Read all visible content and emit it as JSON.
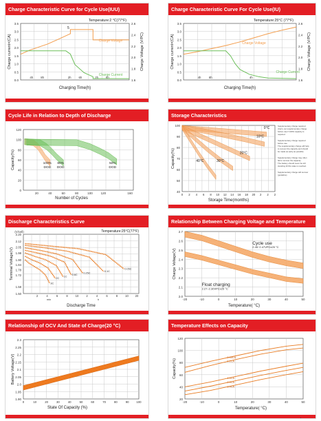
{
  "panels": [
    {
      "title": "Charge Characteristic Curve for Cycle Use(IUU)",
      "chart_data": {
        "type": "line",
        "annotation": "Temperature:2    °C(77°F)",
        "marker": "5",
        "xlabel": "Charging Time(h)",
        "ylabel_left": "Charge current×(CA)",
        "ylabel_right": "Charge Voltage (V/PC)",
        "x_ticks": [
          "4h",
          "8h",
          "2h",
          "6h",
          "2h",
          "6h"
        ],
        "y_left_ticks": [
          "0.0",
          "0.5",
          "1.0",
          "1.5",
          "2.0",
          "2.5",
          "3.0",
          "3.5"
        ],
        "y_right_ticks": [
          "1.6",
          "1.8",
          "2.0",
          "2.2",
          "2.4",
          "2.6"
        ],
        "xlim": [
          0,
          24
        ],
        "ylim_left": [
          0,
          3.5
        ],
        "ylim_right": [
          1.5,
          2.6
        ],
        "series": [
          {
            "name": "Charge Voltage",
            "color": "#f39c4a",
            "x": [
              0,
              2,
              4,
              6,
              8,
              10,
              11,
              11,
              16,
              16,
              21,
              24
            ],
            "y": [
              2.0,
              2.08,
              2.14,
              2.2,
              2.28,
              2.36,
              2.4,
              2.48,
              2.48,
              2.28,
              2.28,
              2.28
            ]
          },
          {
            "name": "Charge Current",
            "color": "#6cbf5a",
            "x": [
              0,
              8,
              10,
              11,
              12,
              14,
              16,
              16,
              24
            ],
            "y": [
              1.8,
              1.8,
              1.8,
              1.6,
              0.95,
              0.45,
              0.2,
              0.08,
              0.08
            ]
          }
        ]
      }
    },
    {
      "title": "Charge Characteristic Curve For Cycle Use(IU)",
      "chart_data": {
        "type": "line",
        "annotation": "Temperature:25°C (77°F)",
        "xlabel": "Charging Time(h)",
        "ylabel_left": "Charge current×(CA)",
        "ylabel_right": "Charge Voltage (V/PC)",
        "x_ticks": [
          "4h",
          "8h",
          "4h"
        ],
        "y_left_ticks": [
          "0.0",
          "0.5",
          "1.0",
          "1.5",
          "2.0",
          "2.5",
          "3.0",
          "3.5"
        ],
        "y_right_ticks": [
          "1.6",
          "1.8",
          "2.0",
          "2.2",
          "2.4",
          "2.6"
        ],
        "xlim": [
          0,
          24
        ],
        "ylim_left": [
          0,
          3.5
        ],
        "ylim_right": [
          1.5,
          2.6
        ],
        "series": [
          {
            "name": "Charge Voltage",
            "color": "#f39c4a",
            "x": [
              0,
              3,
              6,
              9,
              12,
              15,
              18,
              21,
              24
            ],
            "y": [
              2.0,
              2.05,
              2.11,
              2.17,
              2.24,
              2.32,
              2.4,
              2.47,
              2.53
            ]
          },
          {
            "name": "Charge Current",
            "color": "#6cbf5a",
            "x": [
              0,
              9,
              10,
              11,
              12,
              14,
              16,
              18,
              24
            ],
            "y": [
              1.8,
              1.8,
              1.5,
              1.0,
              0.65,
              0.35,
              0.2,
              0.12,
              0.08
            ]
          }
        ]
      }
    },
    {
      "title": "Cycle Life in Relation to Depth of Discharge",
      "chart_data": {
        "type": "area",
        "xlabel": "Number of Cycles",
        "ylabel": "Capacity(%)",
        "x_ticks": [
          "20",
          "40",
          "60",
          "80",
          "100",
          "120",
          "160"
        ],
        "x_tick_values": [
          20,
          40,
          60,
          80,
          100,
          120,
          160
        ],
        "y_ticks": [
          "0",
          "20",
          "40",
          "60",
          "80",
          "100",
          "120"
        ],
        "xlim": [
          0,
          165
        ],
        "ylim": [
          0,
          120
        ],
        "series": [
          {
            "name": "100% DOD",
            "color": "#f4a460",
            "x": [
              2,
              15,
              22,
              28,
              33,
              40
            ],
            "y": [
              102,
              100,
              92,
              80,
              70,
              60
            ]
          },
          {
            "name": "80% DOD",
            "color": "#6cbf5a",
            "x": [
              2,
              25,
              35,
              43,
              50,
              55,
              60
            ],
            "y": [
              102,
              100,
              92,
              82,
              72,
              66,
              60
            ]
          },
          {
            "name": "50% DOD",
            "color": "#6cbf5a",
            "x": [
              5,
              80,
              100,
              115,
              128,
              135,
              140
            ],
            "y": [
              101,
              100,
              92,
              83,
              74,
              67,
              62
            ]
          }
        ],
        "labels": [
          "100%\nDOD",
          "80%\nDOD",
          "50%\nDOD"
        ]
      }
    },
    {
      "title": "Storage Characteristics",
      "chart_data": {
        "type": "line",
        "xlabel": "Storage Time(months)",
        "ylabel": "Capacity(%)",
        "x_ticks": [
          "0",
          "2",
          "4",
          "6",
          "8",
          "10",
          "12",
          "14",
          "16",
          "18",
          "20",
          "2",
          "2",
          "2"
        ],
        "y_ticks": [
          "40",
          "50",
          "60",
          "70",
          "80",
          "90",
          "100"
        ],
        "xlim": [
          0,
          22
        ],
        "ylim": [
          40,
          100
        ],
        "series": [
          {
            "name": "0°C",
            "x": [
              0,
              5,
              10,
              15,
              20
            ],
            "y": [
              100,
              98.5,
              97,
              95.5,
              94
            ]
          },
          {
            "name": "10°C",
            "x": [
              0,
              5,
              10,
              15,
              19.5
            ],
            "y": [
              100,
              97,
              93,
              89,
              85
            ]
          },
          {
            "name": "20°C",
            "x": [
              0,
              4,
              8,
              12,
              16
            ],
            "y": [
              100,
              93,
              86,
              79,
              72
            ]
          },
          {
            "name": "30°C",
            "x": [
              0,
              3,
              6,
              9,
              12
            ],
            "y": [
              100,
              90,
              80,
              71,
              63
            ]
          },
          {
            "name": "40°C",
            "x": [
              0,
              2,
              4,
              6,
              8
            ],
            "y": [
              100,
              88,
              76,
              65,
              55
            ]
          }
        ],
        "notes": [
          "Supplementary charge required",
          "(Carry out supplementary charge",
          "before use if 100% capacity is",
          "required.",
          "Supplementary charge required",
          "before use.",
          "The supplementary charge will help",
          "to recover the capacity and should",
          "be made as early as possible.",
          "Supplementary charge may often",
          "fail to recover the capacity.",
          "The battery should never be left",
          "standing till this state is reached.",
          "Supplementary charge will recover",
          "(guideline)"
        ]
      }
    },
    {
      "title": "Discharge Characteristics Curve",
      "chart_data": {
        "type": "line",
        "annotation": "Temperature:25°C(77°F)",
        "xlabel": "Discharge Time",
        "ylabel": "Terminal Voltage(V)",
        "y_unit": "(V/cell)",
        "y_ticks": [
          "2.20",
          "2.12",
          "2.05",
          "1.98",
          "1.90",
          "1.84",
          "1.78",
          "1.72",
          "1.58",
          "1.50"
        ],
        "y_tick_values": [
          2.2,
          2.12,
          2.05,
          1.98,
          1.9,
          1.84,
          1.78,
          1.72,
          1.58,
          1.5
        ],
        "x_ticks": [
          "2",
          "4",
          "6",
          "8",
          "10",
          "2",
          "4",
          "6",
          "8",
          "10",
          "20"
        ],
        "x_unit_labels": [
          "min",
          "h"
        ],
        "xlim": [
          0,
          21
        ],
        "ylim": [
          1.5,
          2.2
        ],
        "series": [
          {
            "name": "3C",
            "x": [
              0.3,
              1,
              2,
              3,
              4,
              4.8
            ],
            "y": [
              1.9,
              1.86,
              1.82,
              1.78,
              1.72,
              1.62
            ]
          },
          {
            "name": "2C",
            "x": [
              0.3,
              1.5,
              3,
              4.5,
              5.8
            ],
            "y": [
              1.94,
              1.9,
              1.86,
              1.8,
              1.68
            ]
          },
          {
            "name": "1C",
            "x": [
              0.3,
              2,
              4,
              6,
              7.2
            ],
            "y": [
              1.98,
              1.94,
              1.9,
              1.83,
              1.7
            ]
          },
          {
            "name": "0.6C",
            "x": [
              0.3,
              2.5,
              5,
              7.5,
              8.7
            ],
            "y": [
              2.01,
              1.98,
              1.94,
              1.87,
              1.72
            ]
          },
          {
            "name": "0.25C",
            "x": [
              0.3,
              3,
              6,
              9,
              10.8
            ],
            "y": [
              2.04,
              2.01,
              1.97,
              1.9,
              1.74
            ]
          },
          {
            "name": "0.1C",
            "x": [
              0.3,
              4,
              8,
              12,
              14.6
            ],
            "y": [
              2.07,
              2.04,
              2.0,
              1.93,
              1.76
            ]
          },
          {
            "name": "0.05C",
            "x": [
              0.3,
              5,
              10,
              15,
              18.3
            ],
            "y": [
              2.09,
              2.06,
              2.03,
              1.96,
              1.79
            ]
          }
        ]
      }
    },
    {
      "title": "Relationship Between Charging Voltage and Temperature",
      "chart_data": {
        "type": "area",
        "xlabel": "Temperature(  °C)",
        "ylabel": "Charge Voltage(V)",
        "x_ticks": [
          "-20",
          "-10",
          "0",
          "10",
          "20",
          "30",
          "40",
          "50"
        ],
        "x_tick_values": [
          -20,
          -10,
          0,
          10,
          20,
          30,
          40,
          50
        ],
        "y_ticks": [
          "2.0",
          "2.1",
          "2.2",
          "2.3",
          "2.4",
          "2.5",
          "2.6",
          "2.7"
        ],
        "xlim": [
          -20,
          50
        ],
        "ylim": [
          2.0,
          2.7
        ],
        "series": [
          {
            "name": "Cycle use",
            "x": [
              -20,
              -10,
              0,
              10,
              20,
              30,
              40,
              50
            ],
            "y_low": [
              2.64,
              2.6,
              2.54,
              2.48,
              2.42,
              2.37,
              2.33,
              2.3
            ],
            "y_high": [
              2.7,
              2.66,
              2.6,
              2.54,
              2.48,
              2.43,
              2.39,
              2.36
            ]
          },
          {
            "name": "Float charging",
            "x": [
              -20,
              -10,
              0,
              10,
              20,
              30,
              40,
              50
            ],
            "y_low": [
              2.43,
              2.39,
              2.34,
              2.29,
              2.24,
              2.2,
              2.16,
              2.14
            ],
            "y_high": [
              2.48,
              2.44,
              2.39,
              2.34,
              2.29,
              2.25,
              2.21,
              2.19
            ]
          }
        ],
        "labels": [
          "Cycle use",
          "2.45~2.47VPCx25   °C",
          "Float charging",
          "2.27~2.30VPCx25   °C"
        ]
      }
    },
    {
      "title": "Relationship of OCV And State of Charge(20   °C)",
      "chart_data": {
        "type": "area",
        "xlabel": "State Of Capacity (%)",
        "ylabel": "Battery Voltage(V)",
        "x_ticks": [
          "0",
          "10",
          "20",
          "30",
          "40",
          "50",
          "60",
          "70",
          "80",
          "90",
          "100"
        ],
        "x_tick_values": [
          0,
          10,
          20,
          30,
          40,
          50,
          60,
          70,
          80,
          90,
          100
        ],
        "y_ticks": [
          "1.90",
          "1.95",
          "2.0",
          "2.05",
          "2.1",
          "2.15",
          "2.2",
          "2.25",
          "2.3"
        ],
        "xlim": [
          0,
          100
        ],
        "ylim": [
          1.9,
          2.3
        ],
        "series": [
          {
            "name": "OCV",
            "x": [
              0,
              100
            ],
            "y_low": [
              1.96,
              2.16
            ],
            "y_high": [
              1.99,
              2.19
            ]
          }
        ]
      }
    },
    {
      "title": "Temperature Effects on Capacity",
      "chart_data": {
        "type": "line",
        "xlabel": "Temperature(  °C)",
        "ylabel": "Capacity(%)",
        "x_ticks": [
          "-20",
          "-10",
          "0",
          "10",
          "20",
          "30",
          "40",
          "50"
        ],
        "x_tick_values": [
          -20,
          -10,
          0,
          10,
          20,
          30,
          40,
          50
        ],
        "y_ticks": [
          "20",
          "40",
          "60",
          "80",
          "100",
          "120"
        ],
        "y_tick_values": [
          20,
          40,
          60,
          80,
          100,
          120
        ],
        "xlim": [
          -20,
          50
        ],
        "ylim": [
          20,
          120
        ],
        "series": [
          {
            "name": "0.05CA",
            "x": [
              -20,
              -5,
              10,
              25,
              40,
              50
            ],
            "y": [
              72,
              82,
              91,
              100,
              107,
              110
            ]
          },
          {
            "name": "0.1CA",
            "x": [
              -20,
              -5,
              10,
              25,
              40,
              50
            ],
            "y": [
              64,
              75,
              85,
              94,
              101,
              104
            ]
          },
          {
            "name": "1.0CA",
            "x": [
              -20,
              -5,
              10,
              25,
              40,
              50
            ],
            "y": [
              40,
              48,
              57,
              66,
              74,
              79
            ]
          },
          {
            "name": "2.0CA",
            "x": [
              -20,
              -5,
              10,
              25,
              40,
              50
            ],
            "y": [
              33,
              41,
              50,
              59,
              67,
              72
            ]
          },
          {
            "name": "3.0CA",
            "x": [
              -20,
              -5,
              10,
              25,
              40,
              50
            ],
            "y": [
              27,
              34,
              43,
              52,
              60,
              65
            ]
          }
        ]
      }
    }
  ],
  "footer_mark": "·"
}
